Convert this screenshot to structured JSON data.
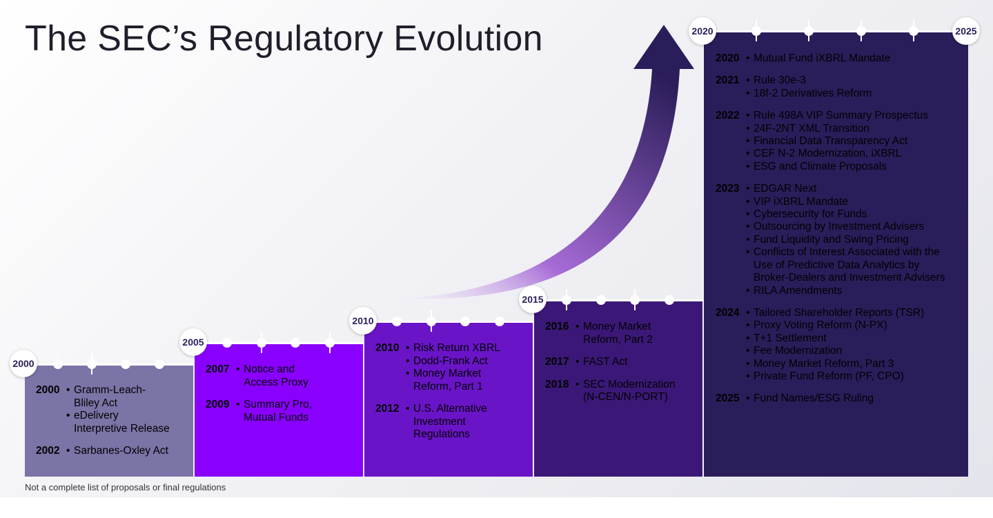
{
  "title": "The SEC’s Regulatory Evolution",
  "footnote": "Not a complete list of proposals or final regulations",
  "colors": {
    "block_2000": "#7b74a6",
    "block_2005": "#8a00ff",
    "block_2010": "#6a14c8",
    "block_2015": "#3b1878",
    "block_2020": "#2b1d5a",
    "arrow_base": "#a66bd6",
    "arrow_tip": "#2b1d5a"
  },
  "milestones": [
    {
      "badge": "2000",
      "entries": [
        {
          "year": "2000",
          "lines": [
            "Gramm-Leach-",
            "Bliley Act"
          ],
          "bullet": "•"
        },
        {
          "year": "",
          "lines": [
            "eDelivery",
            "Interpretive Release"
          ],
          "bullet": "•"
        },
        {
          "year": "2002",
          "lines": [
            "Sarbanes-Oxley Act"
          ],
          "bullet": "•"
        }
      ]
    },
    {
      "badge": "2005",
      "entries": [
        {
          "year": "2007",
          "lines": [
            "Notice and",
            "Access Proxy"
          ],
          "bullet": "•"
        },
        {
          "year": "2009",
          "lines": [
            "Summary Pro,",
            "Mutual Funds"
          ],
          "bullet": "•"
        }
      ]
    },
    {
      "badge": "2010",
      "entries": [
        {
          "year": "2010",
          "lines": [
            "Risk Return XBRL"
          ],
          "bullet": "•"
        },
        {
          "year": "",
          "lines": [
            "Dodd-Frank Act"
          ],
          "bullet": "•"
        },
        {
          "year": "",
          "lines": [
            "Money Market",
            "Reform, Part 1"
          ],
          "bullet": "•"
        },
        {
          "year": "2012",
          "lines": [
            "U.S. Alternative",
            "Investment",
            "Regulations"
          ],
          "bullet": "•"
        }
      ]
    },
    {
      "badge": "2015",
      "entries": [
        {
          "year": "2016",
          "lines": [
            "Money Market",
            "Reform, Part 2"
          ],
          "bullet": "•"
        },
        {
          "year": "2017",
          "lines": [
            "FAST Act"
          ],
          "bullet": "•"
        },
        {
          "year": "2018",
          "lines": [
            "SEC Modernization",
            "(N-CEN/N-PORT)"
          ],
          "bullet": "•"
        }
      ]
    },
    {
      "badge": "2020",
      "badge_end": "2025",
      "entries": [
        {
          "year": "2020",
          "lines": [
            "Mutual Fund iXBRL Mandate"
          ],
          "bullet": "•"
        },
        {
          "year": "2021",
          "lines": [
            "Rule 30e-3"
          ],
          "bullet": "•"
        },
        {
          "year": "",
          "lines": [
            "18f-2 Derivatives Reform"
          ],
          "bullet": "•"
        },
        {
          "year": "2022",
          "lines": [
            "Rule 498A VIP Summary Prospectus"
          ],
          "bullet": "•"
        },
        {
          "year": "",
          "lines": [
            "24F-2NT XML Transition"
          ],
          "bullet": "•"
        },
        {
          "year": "",
          "lines": [
            "Financial Data Transparency Act"
          ],
          "bullet": "•"
        },
        {
          "year": "",
          "lines": [
            "CEF N-2 Modernization, iXBRL"
          ],
          "bullet": "•"
        },
        {
          "year": "",
          "lines": [
            "ESG and Climate Proposals"
          ],
          "bullet": "•"
        },
        {
          "year": "2023",
          "lines": [
            "EDGAR Next"
          ],
          "bullet": "•"
        },
        {
          "year": "",
          "lines": [
            "VIP iXBRL Mandate"
          ],
          "bullet": "•"
        },
        {
          "year": "",
          "lines": [
            "Cybersecurity for Funds"
          ],
          "bullet": "•"
        },
        {
          "year": "",
          "lines": [
            "Outsourcing by Investment Advisers"
          ],
          "bullet": "•"
        },
        {
          "year": "",
          "lines": [
            "Fund Liquidity and Swing Pricing"
          ],
          "bullet": "•"
        },
        {
          "year": "",
          "lines": [
            "Conflicts of Interest Associated with the",
            "Use of Predictive Data Analytics by",
            "Broker-Dealers and Investment Advisers"
          ],
          "bullet": "•"
        },
        {
          "year": "",
          "lines": [
            "RILA Amendments"
          ],
          "bullet": "•"
        },
        {
          "year": "2024",
          "lines": [
            "Tailored Shareholder Reports (TSR)"
          ],
          "bullet": "•"
        },
        {
          "year": "",
          "lines": [
            "Proxy Voting Reform (N-PX)"
          ],
          "bullet": "•"
        },
        {
          "year": "",
          "lines": [
            "T+1 Settlement"
          ],
          "bullet": "•"
        },
        {
          "year": "",
          "lines": [
            "Fee Modernization"
          ],
          "bullet": "•"
        },
        {
          "year": "",
          "lines": [
            "Money Market Reform, Part 3"
          ],
          "bullet": "•"
        },
        {
          "year": "",
          "lines": [
            "Private Fund Reform (PF, CPO)"
          ],
          "bullet": "•"
        },
        {
          "year": "2025",
          "lines": [
            "Fund Names/ESG Ruling"
          ],
          "bullet": "•"
        }
      ]
    }
  ]
}
